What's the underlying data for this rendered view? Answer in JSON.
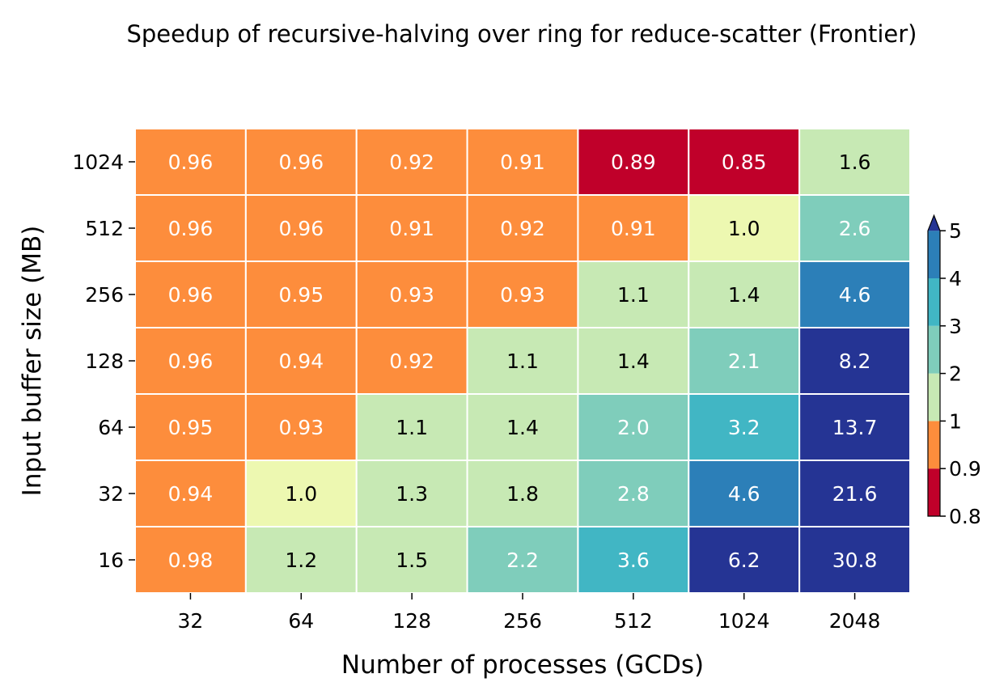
{
  "chart_data": {
    "type": "heatmap",
    "title": "Speedup of recursive-halving over ring for reduce-scatter (Frontier)",
    "xlabel": "Number of processes (GCDs)",
    "ylabel": "Input buffer size (MB)",
    "x_categories": [
      "32",
      "64",
      "128",
      "256",
      "512",
      "1024",
      "2048"
    ],
    "y_categories": [
      "1024",
      "512",
      "256",
      "128",
      "64",
      "32",
      "16"
    ],
    "values": [
      [
        0.96,
        0.96,
        0.92,
        0.91,
        0.89,
        0.85,
        1.6
      ],
      [
        0.96,
        0.96,
        0.91,
        0.92,
        0.91,
        1.0,
        2.6
      ],
      [
        0.96,
        0.95,
        0.93,
        0.93,
        1.1,
        1.4,
        4.6
      ],
      [
        0.96,
        0.94,
        0.92,
        1.1,
        1.4,
        2.1,
        8.2
      ],
      [
        0.95,
        0.93,
        1.1,
        1.4,
        2.0,
        3.2,
        13.7
      ],
      [
        0.94,
        1.0,
        1.3,
        1.8,
        2.8,
        4.6,
        21.6
      ],
      [
        0.98,
        1.2,
        1.5,
        2.2,
        3.6,
        6.2,
        30.8
      ]
    ],
    "cell_labels": [
      [
        "0.96",
        "0.96",
        "0.92",
        "0.91",
        "0.89",
        "0.85",
        "1.6"
      ],
      [
        "0.96",
        "0.96",
        "0.91",
        "0.92",
        "0.91",
        "1.0",
        "2.6"
      ],
      [
        "0.96",
        "0.95",
        "0.93",
        "0.93",
        "1.1",
        "1.4",
        "4.6"
      ],
      [
        "0.96",
        "0.94",
        "0.92",
        "1.1",
        "1.4",
        "2.1",
        "8.2"
      ],
      [
        "0.95",
        "0.93",
        "1.1",
        "1.4",
        "2.0",
        "3.2",
        "13.7"
      ],
      [
        "0.94",
        "1.0",
        "1.3",
        "1.8",
        "2.8",
        "4.6",
        "21.6"
      ],
      [
        "0.98",
        "1.2",
        "1.5",
        "2.2",
        "3.6",
        "6.2",
        "30.8"
      ]
    ],
    "colorbar": {
      "tick_labels": [
        "0.8",
        "0.9",
        "1",
        "2",
        "3",
        "4",
        "5"
      ],
      "boundaries": [
        0.8,
        0.9,
        1,
        2,
        3,
        4,
        5
      ],
      "colors": [
        "#c0002a",
        "#fd8d3c",
        "#c7e9b4",
        "#7fcdbb",
        "#41b6c4",
        "#2c7fb8"
      ],
      "extend_color": "#253494",
      "extend": "max"
    },
    "grid": false,
    "legend": "colorbar-right"
  },
  "colors": {
    "eq_one": "#edf8b1",
    "border": "#ffffff",
    "light_text": "#ffffff",
    "dark_text": "#000000"
  }
}
